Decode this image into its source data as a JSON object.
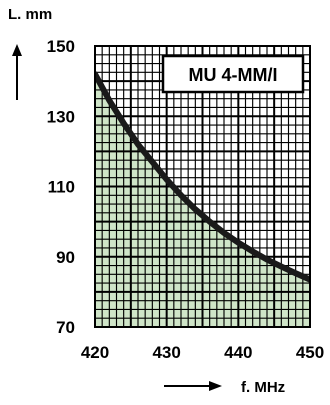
{
  "chart_data": {
    "type": "line",
    "title": "",
    "badge": "MU 4-MM/I",
    "xlabel": "f. MHz",
    "ylabel": "L. mm",
    "xlim": [
      420,
      450
    ],
    "ylim": [
      70,
      150
    ],
    "x_ticks": [
      420,
      430,
      440,
      450
    ],
    "y_ticks": [
      70,
      90,
      110,
      130,
      150
    ],
    "grid": true,
    "series": [
      {
        "x": [
          420,
          422,
          424,
          426,
          428,
          430,
          432,
          434,
          436,
          438,
          440,
          442,
          444,
          446,
          448,
          450
        ],
        "y": [
          142,
          134.5,
          128,
          122,
          117,
          112,
          107.5,
          103.5,
          100,
          96.8,
          94,
          91.5,
          89.2,
          87.2,
          85.3,
          83.5
        ],
        "fill_below": true
      }
    ],
    "colors": {
      "curve": "#1a1a1a",
      "fill": "#cfe5c8",
      "grid": "#000000",
      "plot_bg": "#ffffff"
    }
  }
}
